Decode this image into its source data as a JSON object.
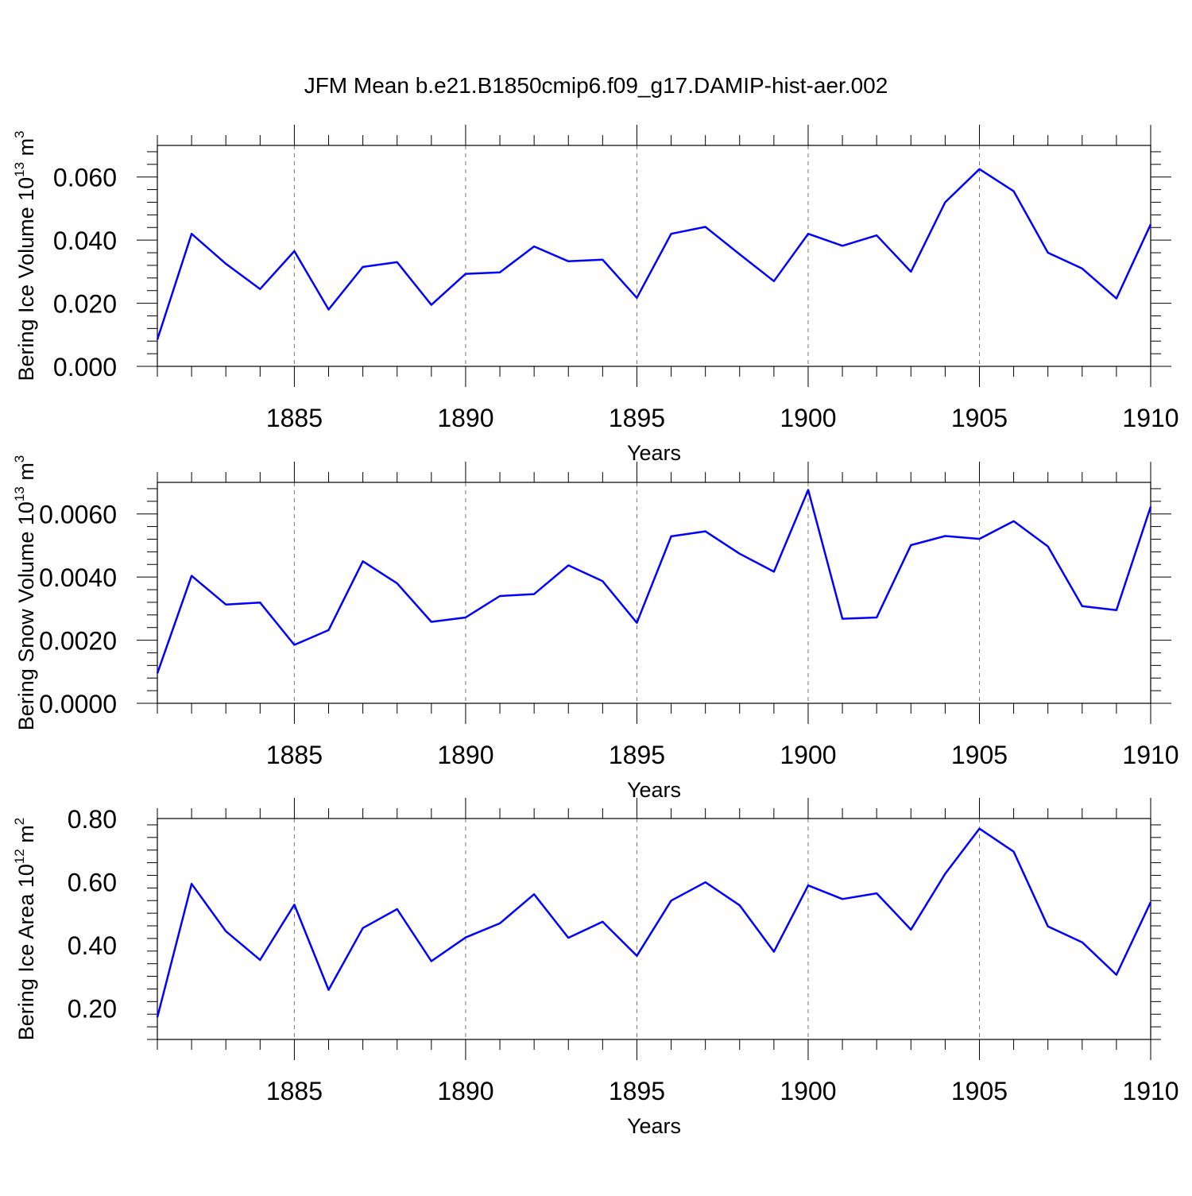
{
  "title": "JFM Mean b.e21.B1850cmip6.f09_g17.DAMIP-hist-aer.002",
  "line_color": "#0000ff",
  "chart_data": [
    {
      "type": "line",
      "ylabel_main": "Bering Ice Volume 10",
      "ylabel_exp": "13",
      "ylabel_unit": " m",
      "ylabel_unit_exp": "3",
      "xlabel": "Years",
      "xlim": [
        1881,
        1910
      ],
      "ylim": [
        0,
        0.07
      ],
      "xticks": [
        1885,
        1890,
        1895,
        1900,
        1905,
        1910
      ],
      "yticks": [
        0,
        0.02,
        0.04,
        0.06
      ],
      "ytick_labels": [
        "0.000",
        "0.020",
        "0.040",
        "0.060"
      ],
      "grid": "vertical dashed at major x ticks",
      "series": [
        {
          "x": [
            1881,
            1882,
            1883,
            1884,
            1885,
            1886,
            1887,
            1888,
            1889,
            1890,
            1891,
            1892,
            1893,
            1894,
            1895,
            1896,
            1897,
            1898,
            1899,
            1900,
            1901,
            1902,
            1903,
            1904,
            1905,
            1906,
            1907,
            1908,
            1909,
            1910
          ],
          "values": [
            0.0085,
            0.042,
            0.0325,
            0.0245,
            0.0365,
            0.018,
            0.0315,
            0.033,
            0.0195,
            0.0293,
            0.0298,
            0.038,
            0.0333,
            0.0338,
            0.0217,
            0.042,
            0.0442,
            0.0355,
            0.027,
            0.042,
            0.0382,
            0.0415,
            0.03,
            0.052,
            0.0625,
            0.0555,
            0.036,
            0.031,
            0.0215,
            0.045
          ]
        }
      ]
    },
    {
      "type": "line",
      "ylabel_main": "Bering Snow Volume 10",
      "ylabel_exp": "13",
      "ylabel_unit": " m",
      "ylabel_unit_exp": "3",
      "xlabel": "Years",
      "xlim": [
        1881,
        1910
      ],
      "ylim": [
        0,
        0.007
      ],
      "xticks": [
        1885,
        1890,
        1895,
        1900,
        1905,
        1910
      ],
      "yticks": [
        0,
        0.002,
        0.004,
        0.006
      ],
      "ytick_labels": [
        "0.0000",
        "0.0020",
        "0.0040",
        "0.0060"
      ],
      "grid": "vertical dashed at major x ticks",
      "series": [
        {
          "x": [
            1881,
            1882,
            1883,
            1884,
            1885,
            1886,
            1887,
            1888,
            1889,
            1890,
            1891,
            1892,
            1893,
            1894,
            1895,
            1896,
            1897,
            1898,
            1899,
            1900,
            1901,
            1902,
            1903,
            1904,
            1905,
            1906,
            1907,
            1908,
            1909,
            1910
          ],
          "values": [
            0.00095,
            0.00404,
            0.00313,
            0.00319,
            0.00185,
            0.00232,
            0.0045,
            0.0038,
            0.00258,
            0.00272,
            0.0034,
            0.00346,
            0.00437,
            0.00387,
            0.00255,
            0.00529,
            0.00545,
            0.00474,
            0.00417,
            0.00676,
            0.00268,
            0.00272,
            0.00501,
            0.0053,
            0.00521,
            0.00577,
            0.00497,
            0.00308,
            0.00295,
            0.00623
          ]
        }
      ]
    },
    {
      "type": "line",
      "ylabel_main": "Bering Ice Area 10",
      "ylabel_exp": "12",
      "ylabel_unit": " m",
      "ylabel_unit_exp": "2",
      "xlabel": "Years",
      "xlim": [
        1881,
        1910
      ],
      "ylim": [
        0.1,
        0.8
      ],
      "xticks": [
        1885,
        1890,
        1895,
        1900,
        1905,
        1910
      ],
      "yticks": [
        0.2,
        0.4,
        0.6,
        0.8
      ],
      "ytick_labels": [
        "0.20",
        "0.40",
        "0.60",
        "0.80"
      ],
      "grid": "vertical dashed at major x ticks",
      "series": [
        {
          "x": [
            1881,
            1882,
            1883,
            1884,
            1885,
            1886,
            1887,
            1888,
            1889,
            1890,
            1891,
            1892,
            1893,
            1894,
            1895,
            1896,
            1897,
            1898,
            1899,
            1900,
            1901,
            1902,
            1903,
            1904,
            1905,
            1906,
            1907,
            1908,
            1909,
            1910
          ],
          "values": [
            0.17,
            0.593,
            0.443,
            0.352,
            0.527,
            0.257,
            0.453,
            0.513,
            0.348,
            0.423,
            0.468,
            0.56,
            0.422,
            0.473,
            0.365,
            0.54,
            0.598,
            0.525,
            0.378,
            0.588,
            0.545,
            0.563,
            0.448,
            0.625,
            0.768,
            0.695,
            0.458,
            0.408,
            0.305,
            0.535
          ]
        }
      ]
    }
  ]
}
